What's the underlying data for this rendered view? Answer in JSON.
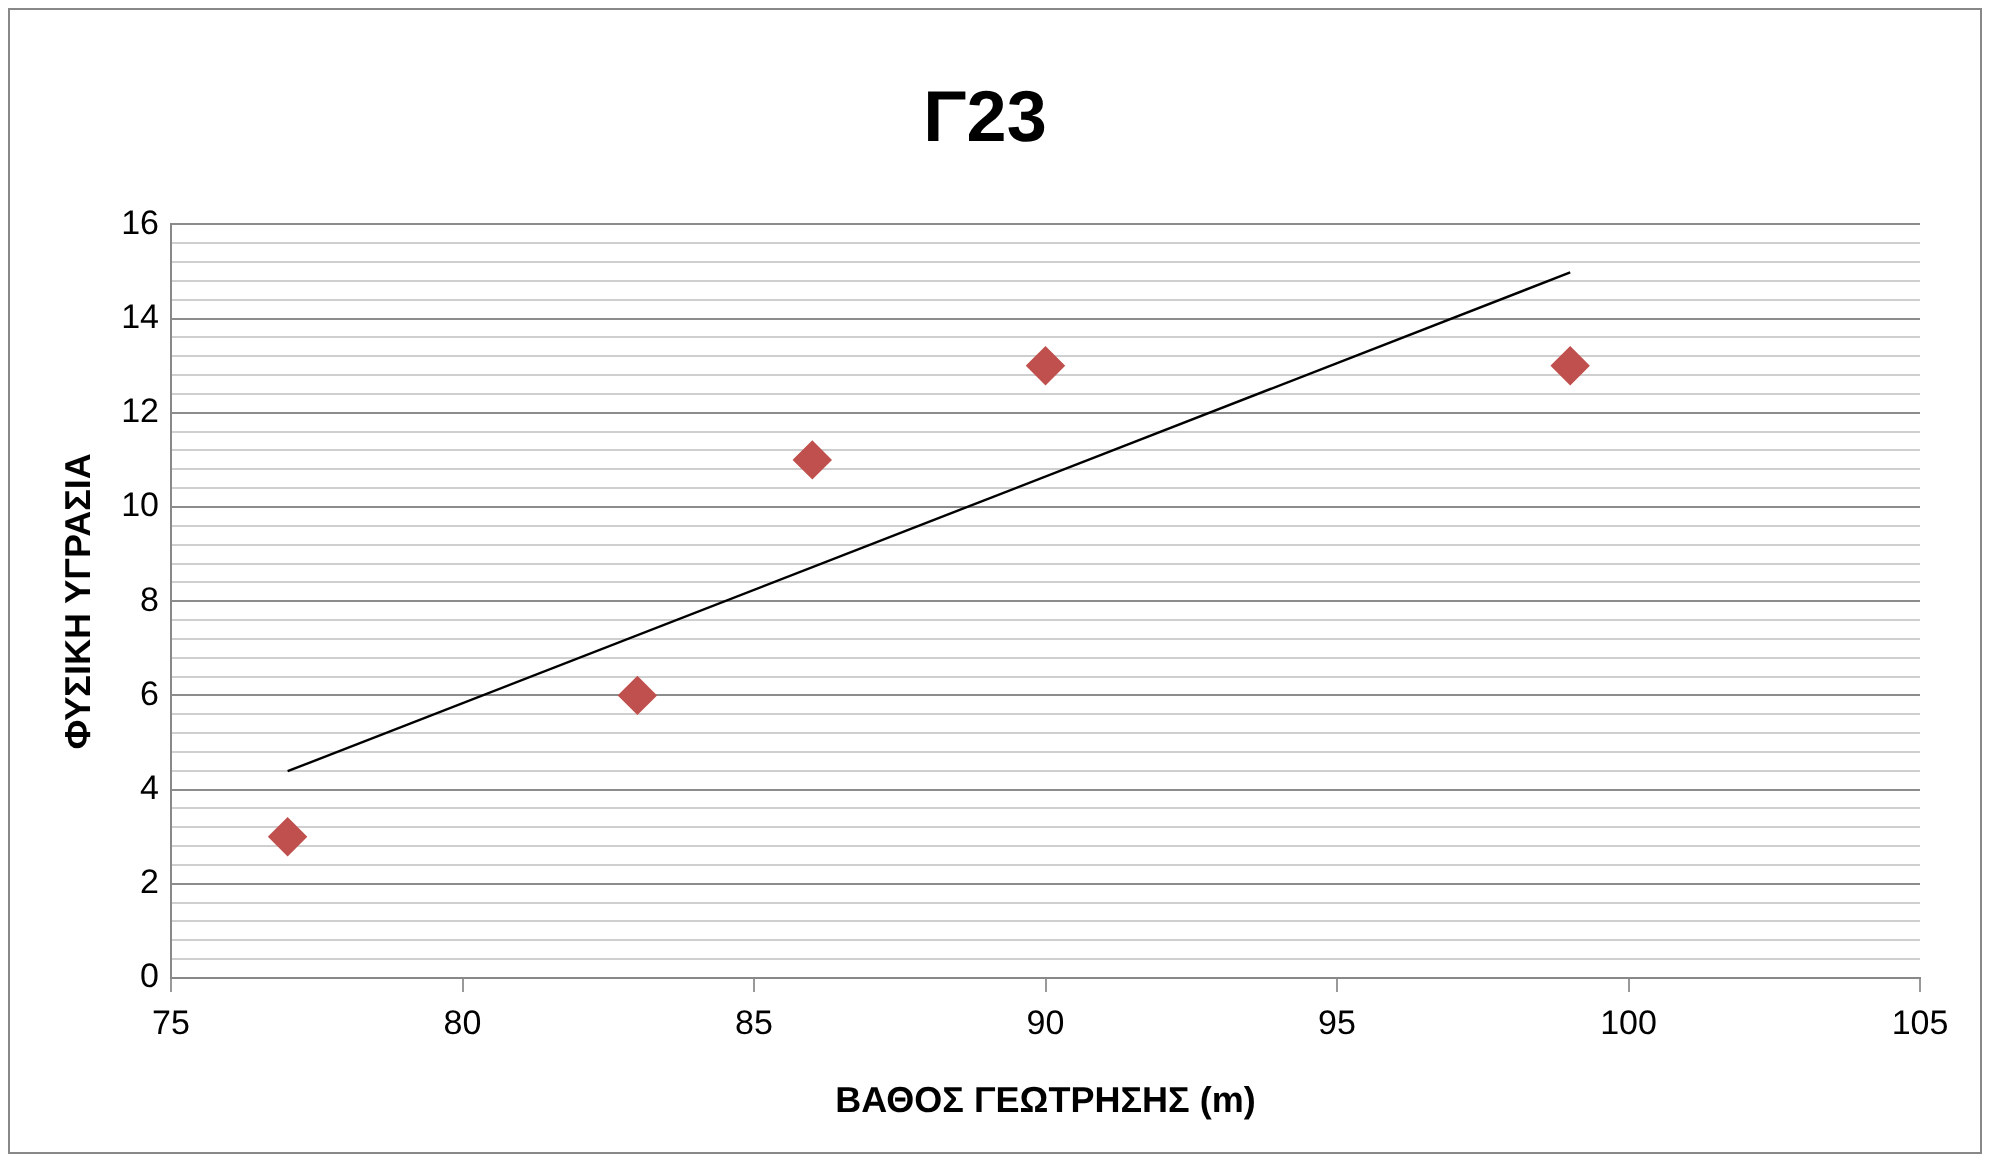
{
  "chart_data": {
    "type": "scatter",
    "title": "Γ23",
    "xlabel": "ΒΑΘΟΣ ΓΕΩΤΡΗΣΗΣ (m)",
    "ylabel": "ΦΥΣΙΚΗ ΥΓΡΑΣΙΑ",
    "series": [
      {
        "type": "scatter",
        "color": "#c0504d",
        "x": [
          77,
          83,
          86,
          90,
          99
        ],
        "values": [
          3,
          6,
          11,
          13,
          13
        ],
        "marker": "diamond"
      },
      {
        "type": "line",
        "color": "#000000",
        "x": [
          77,
          99
        ],
        "values": [
          4.39,
          14.98
        ],
        "marker": "none",
        "line_style": "solid"
      }
    ],
    "xlim": [
      75,
      105
    ],
    "xticks": [
      75,
      80,
      85,
      90,
      95,
      100,
      105
    ],
    "ylim": [
      0,
      16
    ],
    "yticks": [
      0,
      {
        "value": 0.4,
        "label": null
      },
      {
        "value": 0.8,
        "label": null
      },
      {
        "value": 1.2,
        "label": null
      },
      {
        "value": 1.6,
        "label": null
      },
      2,
      {
        "value": 2.4,
        "label": null
      },
      {
        "value": 2.8,
        "label": null
      },
      {
        "value": 3.2,
        "label": null
      },
      {
        "value": 3.6,
        "label": null
      },
      4,
      {
        "value": 4.4,
        "label": null
      },
      {
        "value": 4.8,
        "label": null
      },
      {
        "value": 5.2,
        "label": null
      },
      {
        "value": 5.6,
        "label": null
      },
      6,
      {
        "value": 6.4,
        "label": null
      },
      {
        "value": 6.8,
        "label": null
      },
      {
        "value": 7.2,
        "label": null
      },
      {
        "value": 7.6,
        "label": null
      },
      8,
      {
        "value": 8.4,
        "label": null
      },
      {
        "value": 8.8,
        "label": null
      },
      {
        "value": 9.2,
        "label": null
      },
      {
        "value": 9.6,
        "label": null
      },
      10,
      {
        "value": 10.4,
        "label": null
      },
      {
        "value": 10.8,
        "label": null
      },
      {
        "value": 11.2,
        "label": null
      },
      {
        "value": 11.6,
        "label": null
      },
      12,
      {
        "value": 12.4,
        "label": null
      },
      {
        "value": 12.8,
        "label": null
      },
      {
        "value": 13.2,
        "label": null
      },
      {
        "value": 13.6,
        "label": null
      },
      14,
      {
        "value": 14.4,
        "label": null
      },
      {
        "value": 14.8,
        "label": null
      },
      {
        "value": 15.2,
        "label": null
      },
      {
        "value": 15.6,
        "label": null
      },
      16
    ],
    "grid": "y",
    "legend": false
  }
}
